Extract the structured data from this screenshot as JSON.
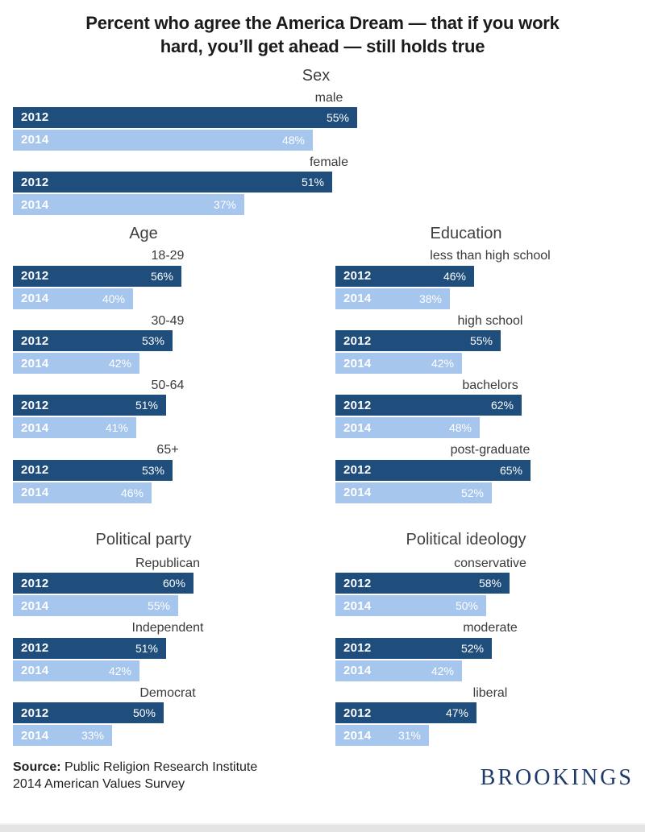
{
  "header": {
    "title_lines": [
      "Percent who agree the America Dream — that if you work",
      "hard, you’ll get ahead — still holds true"
    ]
  },
  "chart_data": {
    "type": "bar",
    "orientation": "horizontal",
    "title": "Percent who agree the America Dream — that if you work hard, you’ll get ahead — still holds true",
    "unit": "%",
    "value_range": [
      0,
      100
    ],
    "grid": false,
    "legend": "in-bar year labels",
    "series_years": [
      "2012",
      "2014"
    ],
    "colors": {
      "2012": "#1f4e7c",
      "2014": "#a6c6ee",
      "bar_text": "#ffffff"
    },
    "sections": [
      {
        "id": "sex",
        "heading": "Sex",
        "layout": "full",
        "groups": [
          {
            "label": "male",
            "values": [
              55,
              48
            ]
          },
          {
            "label": "female",
            "values": [
              51,
              37
            ]
          }
        ]
      },
      {
        "id": "age",
        "heading": "Age",
        "layout": "half",
        "groups": [
          {
            "label": "18-29",
            "values": [
              56,
              40
            ]
          },
          {
            "label": "30-49",
            "values": [
              53,
              42
            ]
          },
          {
            "label": "50-64",
            "values": [
              51,
              41
            ]
          },
          {
            "label": "65+",
            "values": [
              53,
              46
            ]
          }
        ]
      },
      {
        "id": "education",
        "heading": "Education",
        "layout": "half",
        "groups": [
          {
            "label": "less than high school",
            "values": [
              46,
              38
            ]
          },
          {
            "label": "high school",
            "values": [
              55,
              42
            ]
          },
          {
            "label": "bachelors",
            "values": [
              62,
              48
            ]
          },
          {
            "label": "post-graduate",
            "values": [
              65,
              52
            ]
          }
        ]
      },
      {
        "id": "party",
        "heading": "Political party",
        "layout": "half",
        "groups": [
          {
            "label": "Republican",
            "values": [
              60,
              55
            ]
          },
          {
            "label": "Independent",
            "values": [
              51,
              42
            ]
          },
          {
            "label": "Democrat",
            "values": [
              50,
              33
            ]
          }
        ]
      },
      {
        "id": "ideology",
        "heading": "Political ideology",
        "layout": "half",
        "groups": [
          {
            "label": "conservative",
            "values": [
              58,
              50
            ]
          },
          {
            "label": "moderate",
            "values": [
              52,
              42
            ]
          },
          {
            "label": "liberal",
            "values": [
              47,
              31
            ]
          }
        ]
      }
    ]
  },
  "footer": {
    "source_label": "Source:",
    "source_org": "Public Religion Research Institute",
    "source_line2": "2014 American Values Survey",
    "brand": "BROOKINGS",
    "brand_color": "#1e3a6b"
  }
}
